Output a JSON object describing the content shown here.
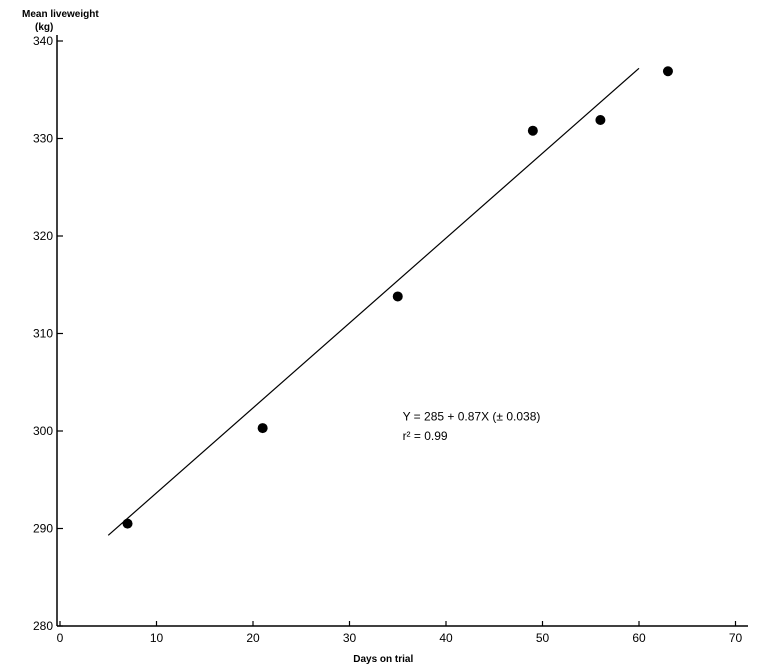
{
  "chart_data": {
    "type": "scatter",
    "title": "",
    "ylabel": "Mean liveweight",
    "ylabel_unit": "(kg)",
    "xlabel": "Days on trial",
    "xlim": [
      0,
      70
    ],
    "ylim": [
      280,
      340
    ],
    "x_ticks": [
      0,
      10,
      20,
      30,
      40,
      50,
      60,
      70
    ],
    "y_ticks": [
      280,
      290,
      300,
      310,
      320,
      330,
      340
    ],
    "grid": false,
    "legend": "none",
    "series": [
      {
        "x": [
          7,
          21,
          35,
          49,
          56,
          63
        ],
        "y": [
          290.5,
          300.3,
          313.8,
          330.8,
          331.9,
          336.9
        ]
      }
    ],
    "regression_line": {
      "x": [
        5,
        60
      ],
      "y": [
        289.3,
        337.2
      ]
    },
    "annotations": [
      {
        "text": "Y = 285 + 0.87X (± 0.038)",
        "x": 35.5,
        "y": 301.5
      },
      {
        "text": "r² = 0.99",
        "x": 35.5,
        "y": 299.5
      }
    ]
  }
}
